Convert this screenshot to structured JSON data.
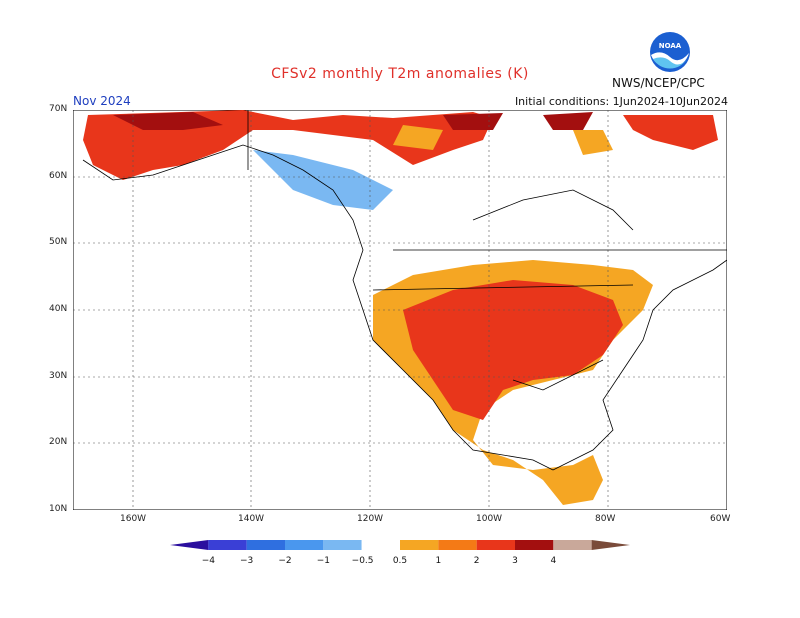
{
  "header": {
    "title": "CFSv2 monthly T2m anomalies (K)",
    "month": "Nov 2024",
    "initial_conditions": "Initial conditions: 1Jun2024-10Jun2024",
    "agency": "NWS/NCEP/CPC",
    "logo_text": "NOAA"
  },
  "axes": {
    "lat_labels": [
      "70N",
      "60N",
      "50N",
      "40N",
      "30N",
      "20N",
      "10N"
    ],
    "lon_labels": [
      "160W",
      "140W",
      "120W",
      "100W",
      "80W",
      "60W"
    ]
  },
  "colorbar": {
    "tick_labels": [
      "−4",
      "−3",
      "−2",
      "−1",
      "−0.5",
      "0.5",
      "1",
      "2",
      "3",
      "4"
    ],
    "colors": [
      "#2b0f9e",
      "#3a3fd6",
      "#2f6fe0",
      "#4a97ee",
      "#7ab8f2",
      "#ffffff",
      "#f5a623",
      "#f47a16",
      "#e8361b",
      "#a30f0f",
      "#c9a89a",
      "#7a4b3a"
    ]
  }
}
